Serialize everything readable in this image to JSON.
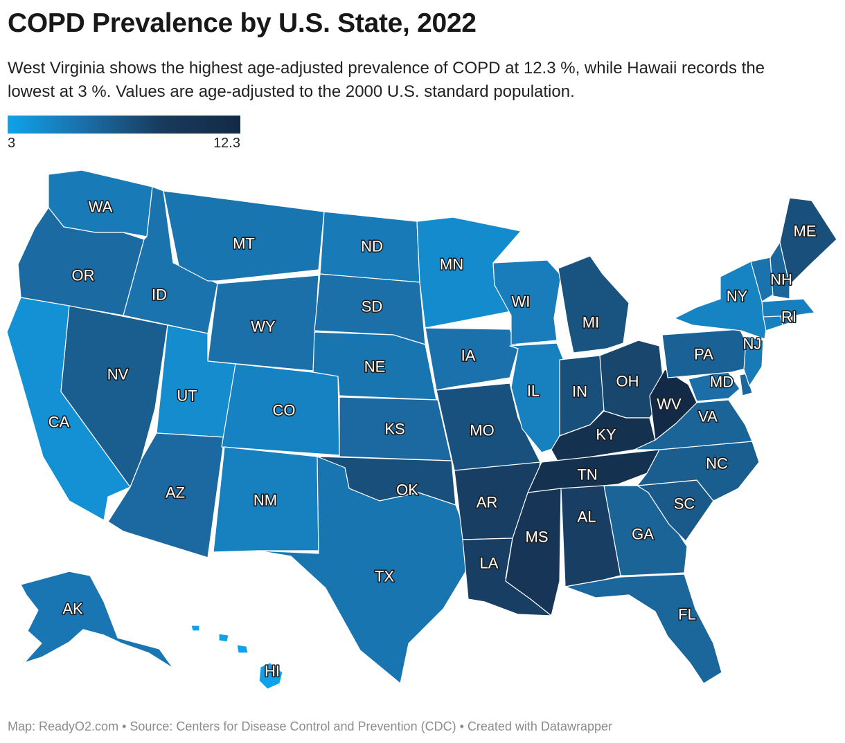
{
  "header": {
    "title": "COPD Prevalence by U.S. State, 2022",
    "subtitle": "West Virginia shows the highest age-adjusted prevalence of COPD at 12.3 %, while Hawaii records the lowest at 3 %. Values are age-adjusted to the 2000 U.S. standard population."
  },
  "legend": {
    "min_label": "3",
    "max_label": "12.3"
  },
  "footer": {
    "text": "Map: ReadyO2.com • Source: Centers for Disease Control and Prevention (CDC) • Created with Datawrapper"
  },
  "chart_data": {
    "type": "choropleth",
    "title": "COPD Prevalence by U.S. State, 2022",
    "subtitle": "West Virginia shows the highest age-adjusted prevalence of COPD at 12.3 %, while Hawaii records the lowest at 3 %. Values are age-adjusted to the 2000 U.S. standard population.",
    "color_scale": {
      "min": 3,
      "max": 12.3,
      "colors": [
        "#0fa2ea",
        "#1b6ea7",
        "#183a5c",
        "#132a46"
      ]
    },
    "states": [
      {
        "code": "WA",
        "value": 5.3
      },
      {
        "code": "OR",
        "value": 6.3
      },
      {
        "code": "CA",
        "value": 4.0
      },
      {
        "code": "NV",
        "value": 7.1
      },
      {
        "code": "ID",
        "value": 5.8
      },
      {
        "code": "MT",
        "value": 5.7
      },
      {
        "code": "WY",
        "value": 6.0
      },
      {
        "code": "UT",
        "value": 4.3
      },
      {
        "code": "AZ",
        "value": 6.4
      },
      {
        "code": "CO",
        "value": 4.9
      },
      {
        "code": "NM",
        "value": 5.0
      },
      {
        "code": "ND",
        "value": 5.3
      },
      {
        "code": "SD",
        "value": 6.0
      },
      {
        "code": "NE",
        "value": 5.7
      },
      {
        "code": "KS",
        "value": 6.4
      },
      {
        "code": "OK",
        "value": 7.9
      },
      {
        "code": "TX",
        "value": 5.7
      },
      {
        "code": "MN",
        "value": 4.4
      },
      {
        "code": "IA",
        "value": 5.9
      },
      {
        "code": "MO",
        "value": 7.8
      },
      {
        "code": "AR",
        "value": 8.9
      },
      {
        "code": "LA",
        "value": 8.9
      },
      {
        "code": "WI",
        "value": 5.2
      },
      {
        "code": "IL",
        "value": 5.0
      },
      {
        "code": "MI",
        "value": 7.7
      },
      {
        "code": "IN",
        "value": 7.9
      },
      {
        "code": "OH",
        "value": 8.5
      },
      {
        "code": "KY",
        "value": 10.9
      },
      {
        "code": "TN",
        "value": 10.9
      },
      {
        "code": "MS",
        "value": 9.9
      },
      {
        "code": "AL",
        "value": 8.9
      },
      {
        "code": "GA",
        "value": 6.7
      },
      {
        "code": "FL",
        "value": 6.6
      },
      {
        "code": "SC",
        "value": 7.3
      },
      {
        "code": "NC",
        "value": 7.1
      },
      {
        "code": "VA",
        "value": 6.7
      },
      {
        "code": "WV",
        "value": 12.3
      },
      {
        "code": "MD",
        "value": 6.1
      },
      {
        "code": "DE",
        "value": 6.5
      },
      {
        "code": "PA",
        "value": 6.8
      },
      {
        "code": "NJ",
        "value": 5.4
      },
      {
        "code": "NY",
        "value": 4.8
      },
      {
        "code": "CT",
        "value": 5.0
      },
      {
        "code": "RI",
        "value": 6.0
      },
      {
        "code": "MA",
        "value": 5.1
      },
      {
        "code": "VT",
        "value": 5.8
      },
      {
        "code": "NH",
        "value": 6.6
      },
      {
        "code": "ME",
        "value": 7.9
      },
      {
        "code": "AK",
        "value": 5.6
      },
      {
        "code": "HI",
        "value": 3.0
      }
    ]
  }
}
